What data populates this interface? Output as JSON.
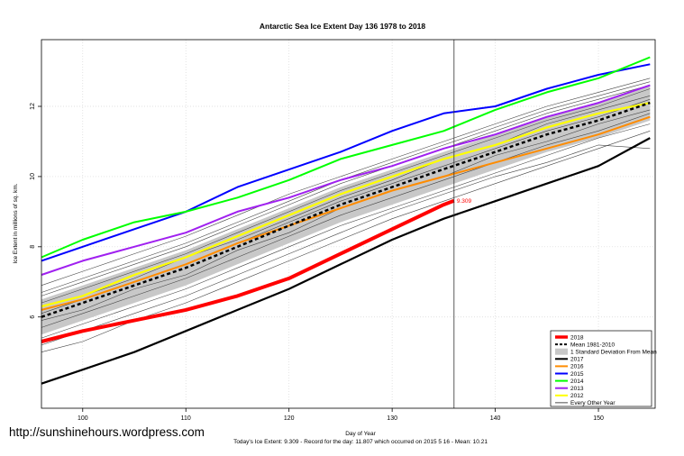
{
  "chart_data": {
    "type": "line",
    "title": "Antarctic Sea Ice Extent Day 136 1978 to 2018",
    "xlabel": "Day of Year",
    "ylabel": "Ice Extent in millions of sq. km.",
    "xlim": [
      96,
      155.5
    ],
    "ylim": [
      3.4,
      13.9
    ],
    "xticks": [
      100,
      110,
      120,
      130,
      140,
      150
    ],
    "yticks": [
      6,
      8,
      10,
      12
    ],
    "marker_day": 136,
    "marker_label": "9.309",
    "grid": true,
    "legend_position": "bottom-right",
    "legend": [
      {
        "label": "2018",
        "color": "#ff0000",
        "style": "solid-thick"
      },
      {
        "label": "Mean 1981-2010",
        "color": "#000000",
        "style": "dashed"
      },
      {
        "label": "1 Standard Deviation From Mean",
        "color": "#c8c8c8",
        "style": "band"
      },
      {
        "label": "2017",
        "color": "#000000",
        "style": "solid"
      },
      {
        "label": "2016",
        "color": "#ff8c00",
        "style": "solid"
      },
      {
        "label": "2015",
        "color": "#0000ff",
        "style": "solid"
      },
      {
        "label": "2014",
        "color": "#00ff00",
        "style": "solid"
      },
      {
        "label": "2013",
        "color": "#a020f0",
        "style": "solid"
      },
      {
        "label": "2012",
        "color": "#ffff00",
        "style": "solid"
      },
      {
        "label": "Every Other Year",
        "color": "#000000",
        "style": "thin"
      }
    ],
    "series": [
      {
        "name": "2015",
        "color": "#0000ff",
        "x": [
          96,
          100,
          105,
          110,
          115,
          120,
          125,
          130,
          135,
          140,
          145,
          150,
          155
        ],
        "values": [
          7.6,
          8.0,
          8.5,
          9.0,
          9.7,
          10.2,
          10.7,
          11.3,
          11.8,
          12.0,
          12.5,
          12.9,
          13.2
        ]
      },
      {
        "name": "2014",
        "color": "#00ff00",
        "x": [
          96,
          100,
          105,
          110,
          115,
          120,
          125,
          130,
          135,
          140,
          145,
          150,
          155
        ],
        "values": [
          7.7,
          8.2,
          8.7,
          9.0,
          9.4,
          9.9,
          10.5,
          10.9,
          11.3,
          11.9,
          12.4,
          12.8,
          13.4
        ]
      },
      {
        "name": "2013",
        "color": "#a020f0",
        "x": [
          96,
          100,
          105,
          110,
          115,
          120,
          125,
          130,
          135,
          140,
          145,
          150,
          155
        ],
        "values": [
          7.2,
          7.6,
          8.0,
          8.4,
          9.0,
          9.4,
          9.9,
          10.3,
          10.8,
          11.2,
          11.7,
          12.1,
          12.6
        ]
      },
      {
        "name": "2012",
        "color": "#ffff00",
        "x": [
          96,
          100,
          105,
          110,
          115,
          120,
          125,
          130,
          135,
          140,
          145,
          150,
          155
        ],
        "values": [
          6.3,
          6.6,
          7.2,
          7.7,
          8.3,
          8.9,
          9.5,
          10.0,
          10.5,
          10.9,
          11.4,
          11.8,
          12.1
        ]
      },
      {
        "name": "2016",
        "color": "#ff8c00",
        "x": [
          96,
          100,
          105,
          110,
          115,
          120,
          125,
          130,
          135,
          140,
          145,
          150,
          155
        ],
        "values": [
          6.2,
          6.5,
          7.0,
          7.5,
          8.1,
          8.6,
          9.1,
          9.6,
          10.0,
          10.4,
          10.8,
          11.2,
          11.7
        ]
      },
      {
        "name": "Mean 1981-2010",
        "color": "#000000",
        "x": [
          96,
          100,
          105,
          110,
          115,
          120,
          125,
          130,
          135,
          140,
          145,
          150,
          155
        ],
        "values": [
          6.0,
          6.4,
          6.9,
          7.4,
          8.0,
          8.6,
          9.2,
          9.7,
          10.21,
          10.7,
          11.2,
          11.6,
          12.1
        ]
      },
      {
        "name": "2018",
        "color": "#ff0000",
        "x": [
          96,
          100,
          105,
          110,
          115,
          120,
          125,
          130,
          135,
          136
        ],
        "values": [
          5.3,
          5.6,
          5.9,
          6.2,
          6.6,
          7.1,
          7.8,
          8.5,
          9.2,
          9.309
        ]
      },
      {
        "name": "2017",
        "color": "#000000",
        "x": [
          96,
          100,
          105,
          110,
          115,
          120,
          125,
          130,
          135,
          140,
          145,
          150,
          155
        ],
        "values": [
          4.1,
          4.5,
          5.0,
          5.6,
          6.2,
          6.8,
          7.5,
          8.2,
          8.8,
          9.3,
          9.8,
          10.3,
          11.1
        ]
      }
    ],
    "std_band": {
      "x": [
        96,
        100,
        105,
        110,
        115,
        120,
        125,
        130,
        135,
        140,
        145,
        150,
        155
      ],
      "upper": [
        6.5,
        6.9,
        7.4,
        7.9,
        8.5,
        9.1,
        9.7,
        10.2,
        10.7,
        11.2,
        11.7,
        12.1,
        12.6
      ],
      "lower": [
        5.5,
        5.9,
        6.4,
        6.9,
        7.5,
        8.1,
        8.7,
        9.2,
        9.7,
        10.2,
        10.7,
        11.1,
        11.6
      ]
    },
    "every_other_year": {
      "x": [
        96,
        100,
        105,
        110,
        115,
        120,
        125,
        130,
        135,
        140,
        145,
        150,
        155
      ],
      "lines": [
        [
          5.4,
          5.8,
          6.3,
          6.8,
          7.4,
          8.0,
          8.6,
          9.1,
          9.6,
          10.1,
          10.6,
          11.1,
          11.5
        ],
        [
          5.7,
          6.1,
          6.6,
          7.1,
          7.7,
          8.3,
          8.9,
          9.4,
          9.9,
          10.4,
          10.9,
          11.3,
          11.8
        ],
        [
          6.1,
          6.5,
          7.0,
          7.5,
          8.1,
          8.7,
          9.3,
          9.8,
          10.3,
          10.8,
          11.3,
          11.7,
          12.2
        ],
        [
          6.4,
          6.8,
          7.3,
          7.8,
          8.4,
          9.0,
          9.6,
          10.1,
          10.6,
          11.1,
          11.6,
          12.0,
          12.5
        ],
        [
          6.7,
          7.1,
          7.6,
          8.1,
          8.7,
          9.3,
          9.9,
          10.4,
          10.9,
          11.4,
          11.9,
          12.3,
          12.7
        ],
        [
          5.9,
          6.2,
          6.8,
          7.2,
          7.9,
          8.4,
          9.1,
          9.6,
          10.0,
          10.6,
          11.0,
          11.5,
          11.9
        ],
        [
          6.9,
          7.3,
          7.8,
          8.3,
          8.9,
          9.5,
          10.0,
          10.5,
          11.0,
          11.5,
          12.0,
          12.4,
          12.8
        ],
        [
          5.2,
          5.6,
          6.1,
          6.6,
          7.2,
          7.8,
          8.4,
          9.0,
          9.5,
          10.0,
          10.4,
          10.9,
          10.8
        ],
        [
          6.3,
          6.6,
          7.1,
          7.7,
          8.2,
          8.8,
          9.4,
          9.9,
          10.5,
          10.9,
          11.5,
          11.9,
          12.3
        ],
        [
          5.0,
          5.3,
          5.9,
          6.4,
          7.0,
          7.6,
          8.2,
          8.8,
          9.3,
          9.8,
          10.3,
          10.8,
          11.3
        ],
        [
          6.6,
          7.0,
          7.5,
          8.0,
          8.6,
          9.2,
          9.8,
          10.3,
          10.8,
          11.3,
          11.8,
          12.2,
          12.6
        ]
      ]
    },
    "footer": "Today's Ice Extent: 9.309  - Record for the day: 11.807 which occurred on 2015 5 16  - Mean: 10.21"
  },
  "watermark": "http://sunshinehours.wordpress.com"
}
